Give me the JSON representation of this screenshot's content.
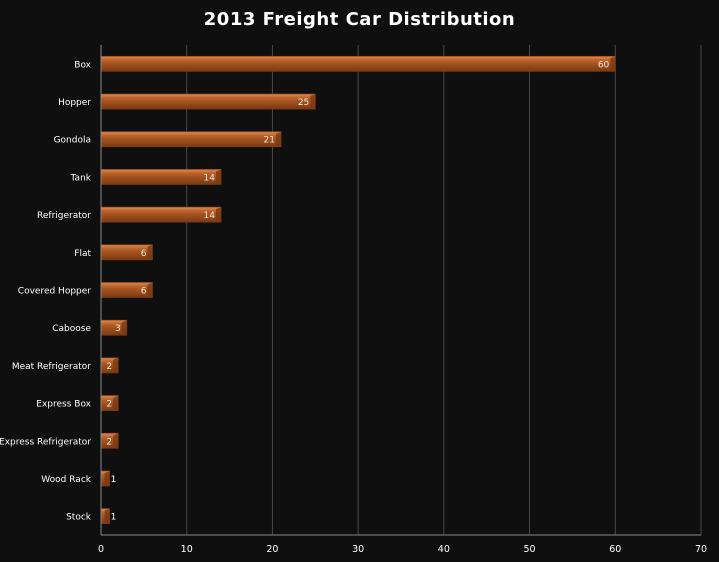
{
  "chart_data": {
    "type": "bar",
    "orientation": "horizontal",
    "title": "2013 Freight Car Distribution",
    "xlabel": "",
    "ylabel": "",
    "categories": [
      "Box",
      "Hopper",
      "Gondola",
      "Tank",
      "Refrigerator",
      "Flat",
      "Covered Hopper",
      "Caboose",
      "Meat Refrigerator",
      "Express Box",
      "Express Refrigerator",
      "Wood Rack",
      "Stock"
    ],
    "values": [
      60,
      25,
      21,
      14,
      14,
      6,
      6,
      3,
      2,
      2,
      2,
      1,
      1
    ],
    "xlim": [
      0,
      70
    ],
    "xticks": [
      0,
      10,
      20,
      30,
      40,
      50,
      60,
      70
    ],
    "grid": true,
    "data_labels": true,
    "legend": "none"
  },
  "colors": {
    "background": "#0f0f10",
    "bar_fill": "#a85420",
    "bar_edge_dark": "#7a3a12",
    "bar_highlight": "#d9834a",
    "gridline": "#4a4a4a",
    "axis": "#8a8a8a",
    "text": "#ffffff",
    "label_on_bar": "#f2e6da"
  }
}
